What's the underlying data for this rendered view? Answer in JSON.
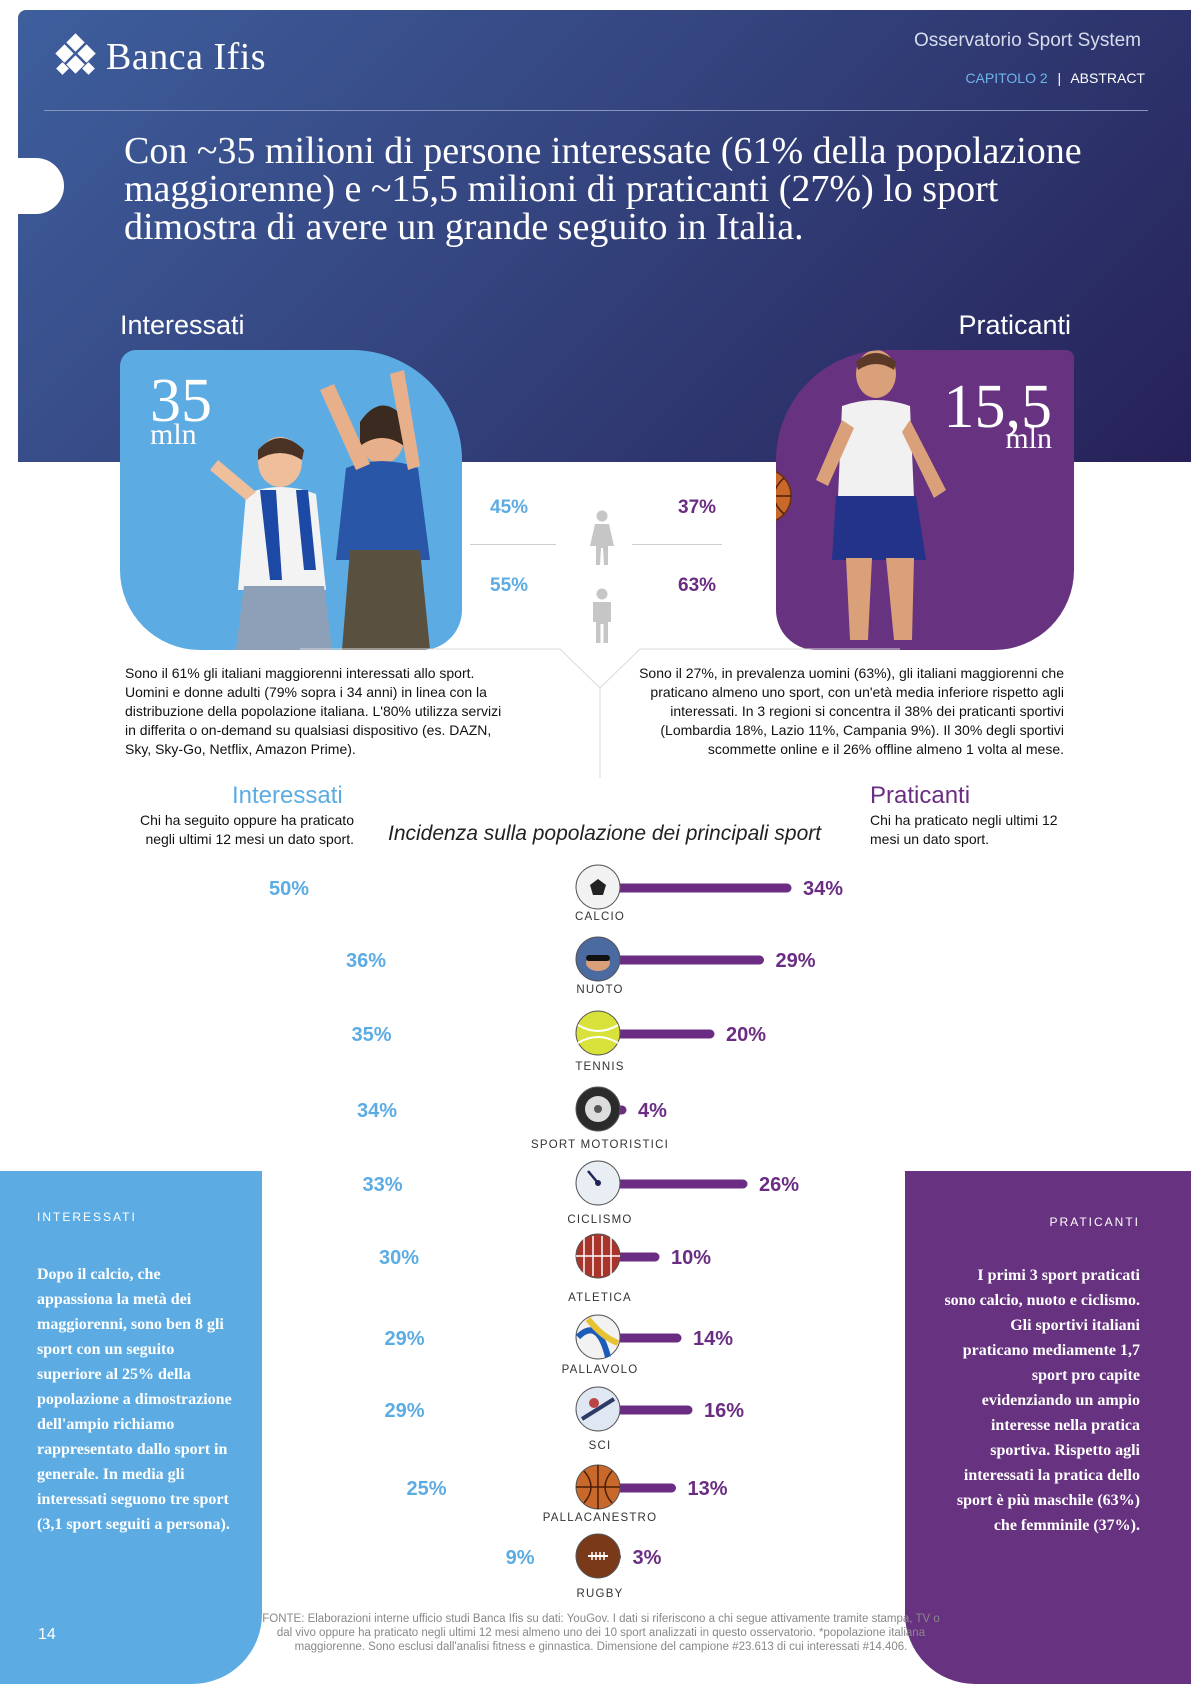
{
  "brand": {
    "name": "Banca Ifis"
  },
  "header": {
    "series": "Osservatorio Sport System",
    "chapter": "CAPITOLO 2",
    "separator": "|",
    "section": "ABSTRACT",
    "headline": "Con ~35 milioni di persone interessate (61% della popolazione maggiorenne) e ~15,5 milioni di praticanti (27%) lo sport dimostra di avere un grande seguito in Italia."
  },
  "interessati": {
    "label": "Interessati",
    "number": "35",
    "unit": "mln",
    "female_pct": "45%",
    "male_pct": "55%",
    "description": "Sono il 61% gli italiani maggiorenni interessati allo sport. Uomini e donne adulti (79% sopra i 34 anni) in linea con la distribuzione della popolazione italiana. L'80% utilizza servizi in differita o on-demand su qualsiasi dispositivo (es. DAZN, Sky, Sky-Go, Netflix, Amazon Prime).",
    "title": "Interessati",
    "definition": "Chi ha seguito oppure ha praticato negli ultimi 12 mesi un dato sport."
  },
  "praticanti": {
    "label": "Praticanti",
    "number": "15,5",
    "unit": "mln",
    "female_pct": "37%",
    "male_pct": "63%",
    "description": "Sono il 27%, in prevalenza uomini (63%), gli italiani maggiorenni che praticano almeno uno sport, con un'età media inferiore rispetto agli interessati. In 3 regioni si concentra il 38% dei praticanti sportivi (Lombardia 18%, Lazio 11%, Campania 9%). Il 30% degli sportivi scommette online e il 26% offline almeno 1 volta al mese.",
    "title": "Praticanti",
    "definition": "Chi ha praticato negli ultimi 12 mesi un dato sport."
  },
  "chart_data": {
    "type": "bar",
    "title": "Incidenza sulla popolazione dei principali sport",
    "categories": [
      "CALCIO",
      "NUOTO",
      "TENNIS",
      "SPORT MOTORISTICI",
      "CICLISMO",
      "ATLETICA",
      "PALLAVOLO",
      "SCI",
      "PALLACANESTRO",
      "RUGBY"
    ],
    "series": [
      {
        "name": "Interessati",
        "values": [
          50,
          36,
          35,
          34,
          33,
          30,
          29,
          29,
          25,
          9
        ]
      },
      {
        "name": "Praticanti",
        "values": [
          34,
          29,
          20,
          4,
          26,
          10,
          14,
          16,
          13,
          3
        ]
      }
    ],
    "left_labels": [
      "50%",
      "36%",
      "35%",
      "34%",
      "33%",
      "30%",
      "29%",
      "29%",
      "25%",
      "9%"
    ],
    "right_labels": [
      "34%",
      "29%",
      "20%",
      "4%",
      "26%",
      "10%",
      "14%",
      "16%",
      "13%",
      "3%"
    ],
    "colors": {
      "interessati": "#5cace3",
      "praticanti": "#6a2d83"
    }
  },
  "side_left": {
    "label": "INTERESSATI",
    "text": "Dopo il calcio, che appassiona la metà dei maggiorenni, sono ben 8 gli sport con un seguito superiore al 25% della popolazione a dimostrazione dell'ampio richiamo rappresentato dallo sport in generale. In media gli interessati seguono tre sport (3,1 sport seguiti a persona)."
  },
  "side_right": {
    "label": "PRATICANTI",
    "text": "I primi 3 sport praticati sono calcio, nuoto e ciclismo. Gli sportivi italiani praticano mediamente 1,7 sport pro capite evidenziando un ampio interesse nella pratica sportiva. Rispetto agli interessati la pratica dello sport è più maschile (63%) che femminile (37%)."
  },
  "footer": {
    "page": "14",
    "source": "FONTE: Elaborazioni interne ufficio studi Banca Ifis su dati: YouGov. I dati si riferiscono a chi segue attivamente tramite stampa, TV o dal vivo oppure ha praticato negli ultimi 12 mesi almeno uno dei 10 sport analizzati in questo osservatorio. *popolazione italiana maggiorenne. Sono esclusi dall'analisi fitness e ginnastica. Dimensione del campione #23.613 di cui interessati #14.406."
  },
  "icons": [
    "soccer-ball-icon",
    "swimmer-icon",
    "tennis-ball-icon",
    "tire-icon",
    "speedometer-icon",
    "running-track-icon",
    "volleyball-icon",
    "skier-icon",
    "basketball-icon",
    "rugby-ball-icon",
    "female-icon",
    "male-icon"
  ]
}
